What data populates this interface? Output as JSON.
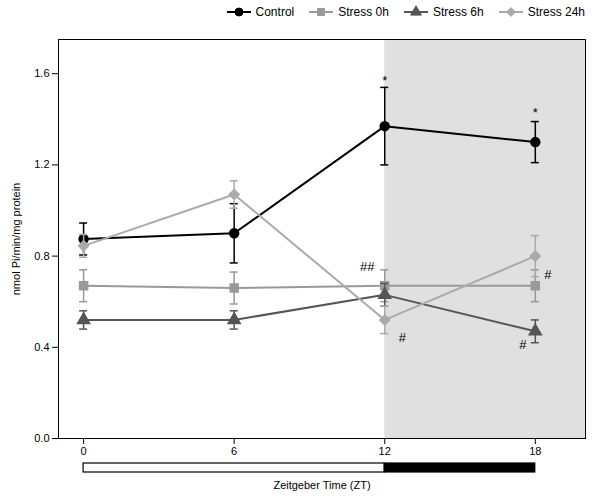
{
  "chart_data": {
    "type": "line",
    "x": [
      0,
      6,
      12,
      18
    ],
    "series": [
      {
        "name": "Control",
        "color": "#000000",
        "marker": "circle",
        "values": [
          0.875,
          0.9,
          1.37,
          1.3
        ],
        "errors": [
          0.07,
          0.13,
          0.17,
          0.09
        ]
      },
      {
        "name": "Stress 0h",
        "color": "#999999",
        "marker": "square",
        "values": [
          0.67,
          0.66,
          0.67,
          0.67
        ],
        "errors": [
          0.07,
          0.07,
          0.07,
          0.07
        ]
      },
      {
        "name": "Stress 6h",
        "color": "#555555",
        "marker": "triangle",
        "values": [
          0.52,
          0.52,
          0.63,
          0.47
        ],
        "errors": [
          0.04,
          0.04,
          0.05,
          0.05
        ]
      },
      {
        "name": "Stress 24h",
        "color": "#aaaaaa",
        "marker": "diamond",
        "values": [
          0.845,
          1.07,
          0.52,
          0.8
        ],
        "errors": [
          0.05,
          0.06,
          0.06,
          0.09
        ]
      }
    ],
    "xlabel": "Zeitgeber Time (ZT)",
    "ylabel": "nmol Pi/min/mg protein",
    "xlim": [
      -1,
      20
    ],
    "ylim": [
      0,
      1.75
    ],
    "xticks": [
      0,
      6,
      12,
      18
    ],
    "yticks": [
      0,
      0.4,
      0.8,
      1.2,
      1.6
    ],
    "legend": "upper right",
    "shaded_regions": [
      {
        "x0": 12,
        "x1": 20,
        "color": "#e0e0e0"
      }
    ],
    "light_dark_bar": [
      {
        "x0": 0,
        "x1": 12,
        "color": "#ffffff"
      },
      {
        "x0": 12,
        "x1": 18,
        "color": "#000000"
      }
    ],
    "annotations": [
      {
        "x": 12,
        "y": 1.57,
        "text": "*"
      },
      {
        "x": 18,
        "y": 1.43,
        "text": "*"
      },
      {
        "x": 11.3,
        "y": 0.755,
        "text": "##"
      },
      {
        "x": 17.5,
        "y": 0.41,
        "text": "#"
      },
      {
        "x": 12.7,
        "y": 0.44,
        "text": "#"
      },
      {
        "x": 18.5,
        "y": 0.72,
        "text": "#"
      }
    ]
  }
}
